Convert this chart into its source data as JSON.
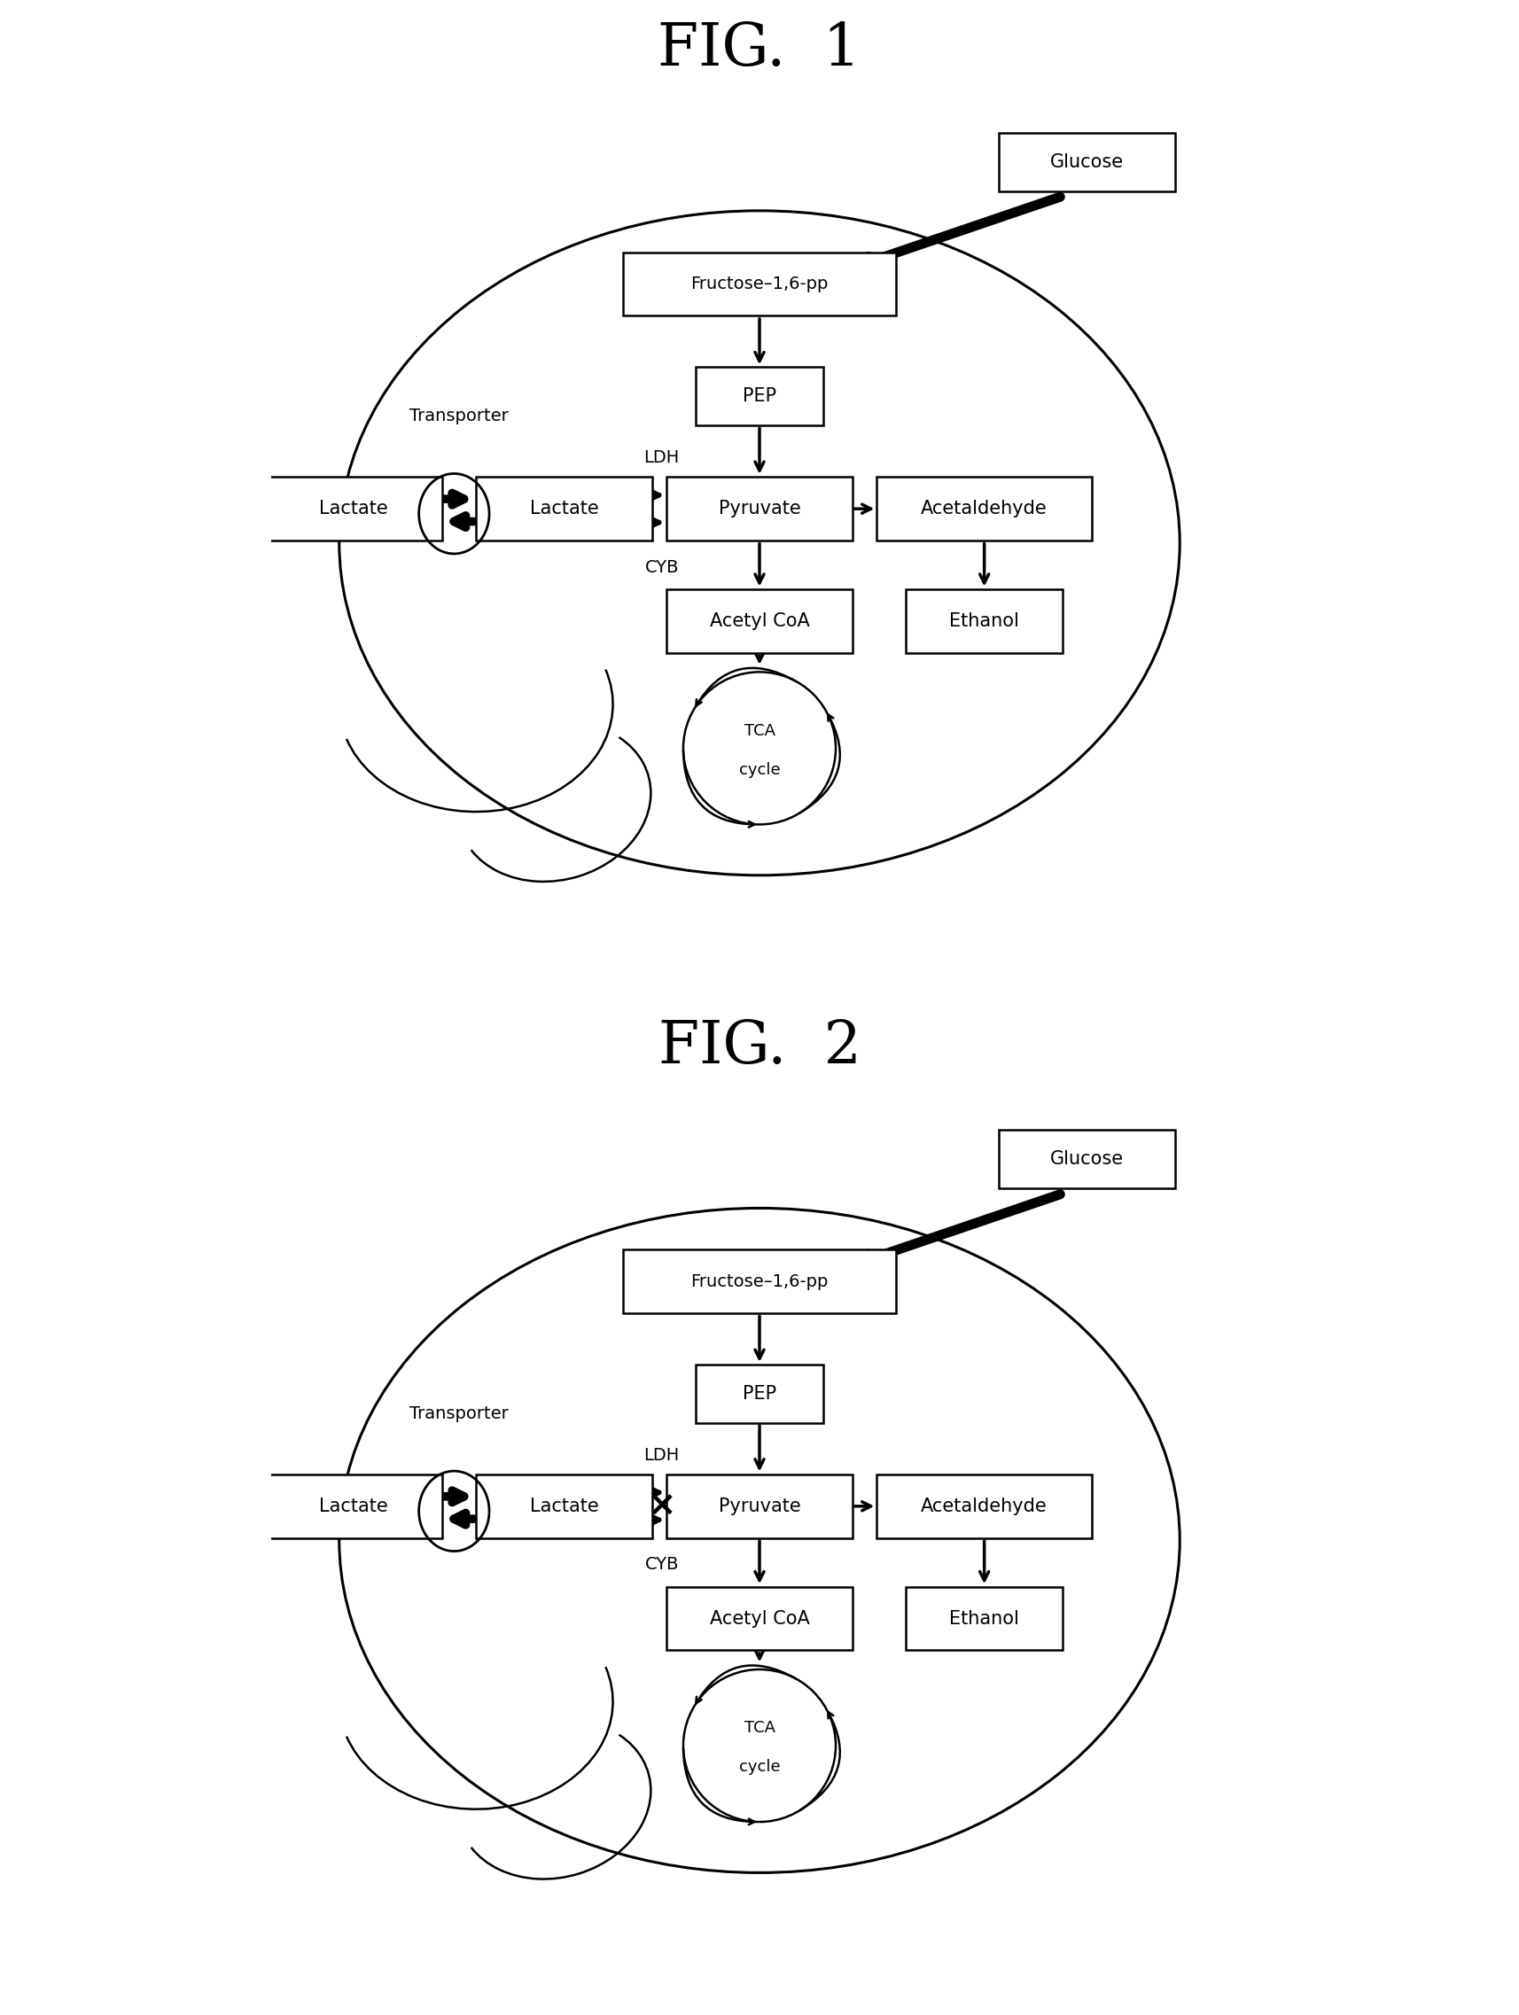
{
  "fig1_title": "FIG.  1",
  "fig2_title": "FIG.  2",
  "bg_color": "#ffffff",
  "box_texts": {
    "glucose": "Glucose",
    "fructose": "Fructose–1,6-pp",
    "pep": "PEP",
    "pyruvate": "Pyruvate",
    "lactate_in": "Lactate",
    "lactate_out": "Lactate",
    "acetaldehyde": "Acetaldehyde",
    "acetylcoa": "Acetyl CoA",
    "ethanol": "Ethanol",
    "tca1": "TCA",
    "tca2": "cycle",
    "ldh": "LDH",
    "cyb": "CYB",
    "transporter": "Transporter"
  }
}
